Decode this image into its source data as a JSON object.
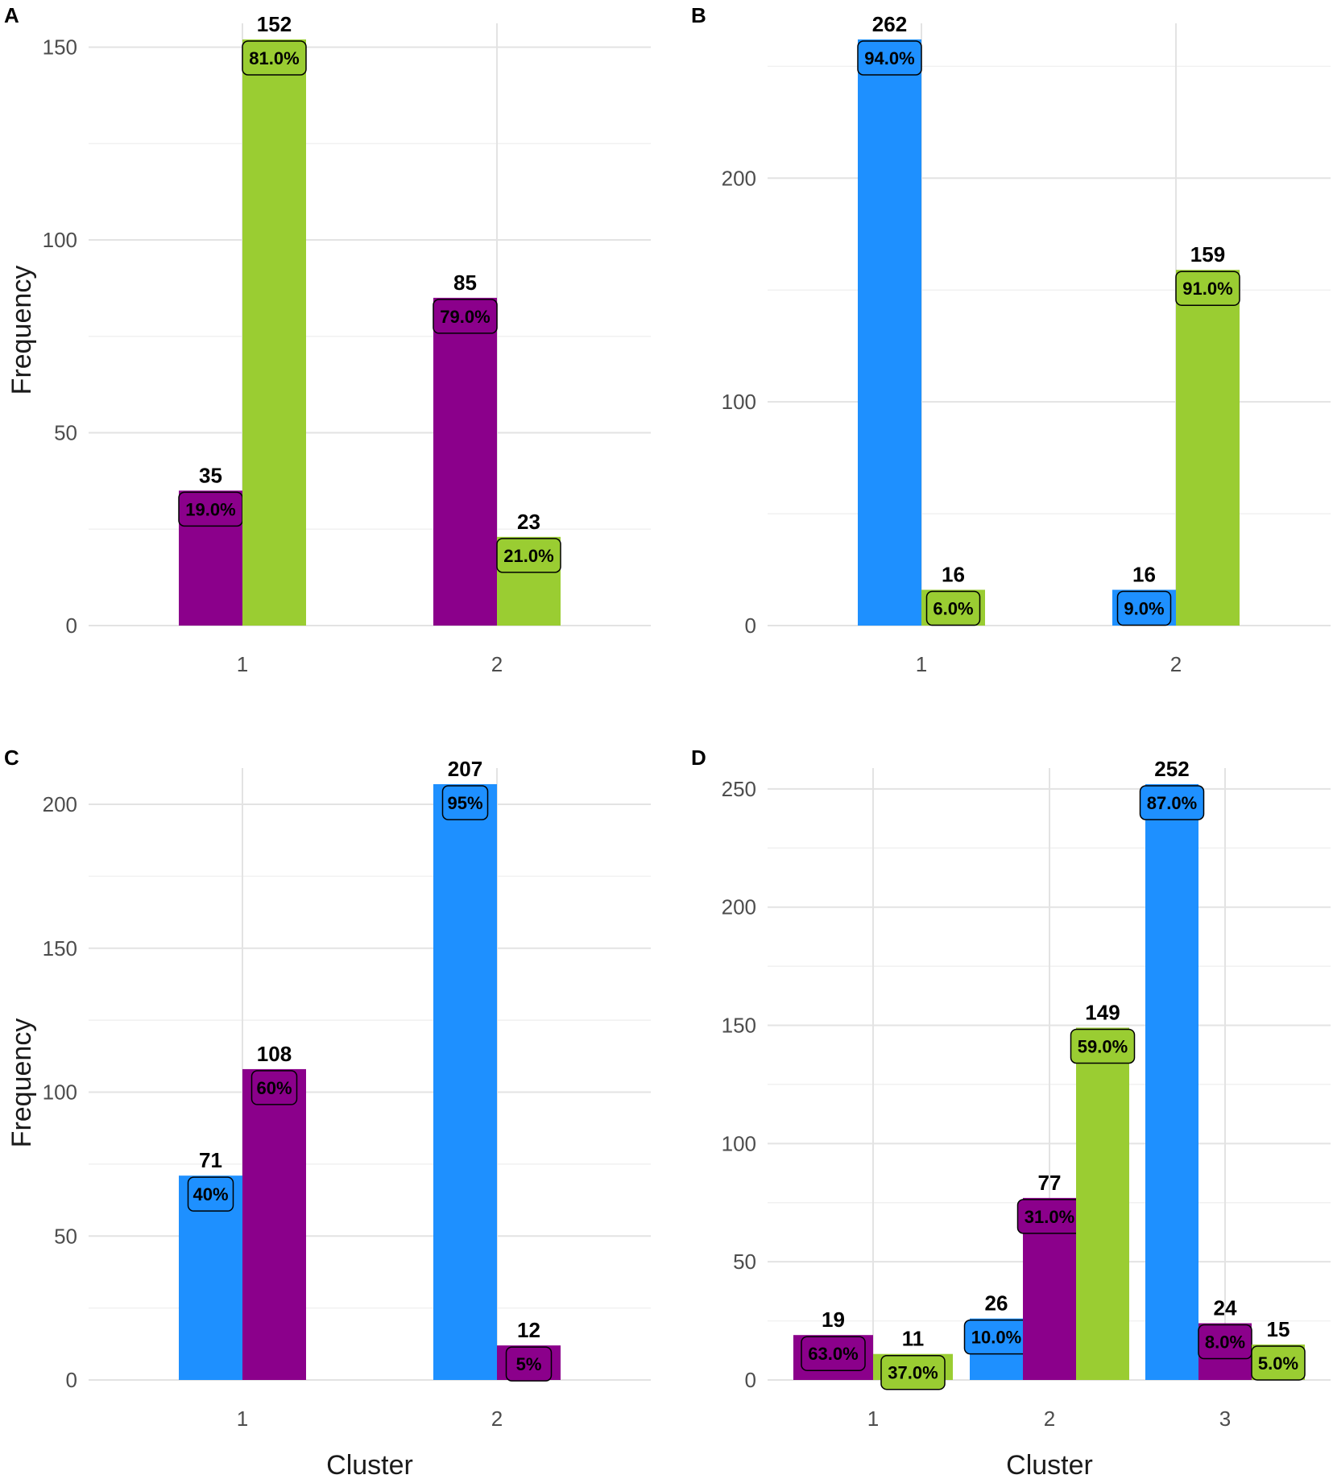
{
  "colors": {
    "blue": "#1E90FF",
    "purple": "#8B008B",
    "green": "#9ACD32",
    "grid_major": "#e3e3e3",
    "grid_minor": "#f1f1f1",
    "label_box_border": "#000000"
  },
  "chart_data": [
    {
      "panel": "A",
      "type": "bar",
      "layout": "grouped",
      "xlabel": "",
      "ylabel": "Frequency",
      "ylim": [
        0,
        152
      ],
      "yticks": [
        0,
        50,
        100,
        150
      ],
      "categories": [
        "1",
        "2"
      ],
      "bars": [
        {
          "category": "1",
          "slot": 0,
          "slots": 2,
          "color": "purple",
          "value": 35,
          "value_label": "35",
          "pct": "19.0%"
        },
        {
          "category": "1",
          "slot": 1,
          "slots": 2,
          "color": "green",
          "value": 152,
          "value_label": "152",
          "pct": "81.0%"
        },
        {
          "category": "2",
          "slot": 0,
          "slots": 2,
          "color": "purple",
          "value": 85,
          "value_label": "85",
          "pct": "79.0%"
        },
        {
          "category": "2",
          "slot": 1,
          "slots": 2,
          "color": "green",
          "value": 23,
          "value_label": "23",
          "pct": "21.0%"
        }
      ]
    },
    {
      "panel": "B",
      "type": "bar",
      "layout": "grouped",
      "xlabel": "",
      "ylabel": "",
      "ylim": [
        0,
        262
      ],
      "yticks": [
        0,
        100,
        200
      ],
      "categories": [
        "1",
        "2"
      ],
      "bars": [
        {
          "category": "1",
          "slot": 0,
          "slots": 2,
          "color": "blue",
          "value": 262,
          "value_label": "262",
          "pct": "94.0%"
        },
        {
          "category": "1",
          "slot": 1,
          "slots": 2,
          "color": "green",
          "value": 16,
          "value_label": "16",
          "pct": "6.0%"
        },
        {
          "category": "2",
          "slot": 0,
          "slots": 2,
          "color": "blue",
          "value": 16,
          "value_label": "16",
          "pct": "9.0%"
        },
        {
          "category": "2",
          "slot": 1,
          "slots": 2,
          "color": "green",
          "value": 159,
          "value_label": "159",
          "pct": "91.0%"
        }
      ]
    },
    {
      "panel": "C",
      "type": "bar",
      "layout": "grouped",
      "xlabel": "Cluster",
      "ylabel": "Frequency",
      "ylim": [
        0,
        207
      ],
      "yticks": [
        0,
        50,
        100,
        150,
        200
      ],
      "categories": [
        "1",
        "2"
      ],
      "bars": [
        {
          "category": "1",
          "slot": 0,
          "slots": 2,
          "color": "blue",
          "value": 71,
          "value_label": "71",
          "pct": "40%"
        },
        {
          "category": "1",
          "slot": 1,
          "slots": 2,
          "color": "purple",
          "value": 108,
          "value_label": "108",
          "pct": "60%"
        },
        {
          "category": "2",
          "slot": 0,
          "slots": 2,
          "color": "blue",
          "value": 207,
          "value_label": "207",
          "pct": "95%"
        },
        {
          "category": "2",
          "slot": 1,
          "slots": 2,
          "color": "purple",
          "value": 12,
          "value_label": "12",
          "pct": "5%"
        }
      ]
    },
    {
      "panel": "D",
      "type": "bar",
      "layout": "dodged",
      "xlabel": "Cluster",
      "ylabel": "",
      "ylim": [
        0,
        252
      ],
      "yticks": [
        0,
        50,
        100,
        150,
        200,
        250
      ],
      "categories": [
        "1",
        "2",
        "3"
      ],
      "bars": [
        {
          "category": "1",
          "slot": 0,
          "slots": 2,
          "color": "purple",
          "value": 19,
          "value_label": "19",
          "pct": "63.0%"
        },
        {
          "category": "1",
          "slot": 1,
          "slots": 2,
          "color": "green",
          "value": 11,
          "value_label": "11",
          "pct": "37.0%"
        },
        {
          "category": "2",
          "slot": 0,
          "slots": 3,
          "color": "blue",
          "value": 26,
          "value_label": "26",
          "pct": "10.0%"
        },
        {
          "category": "2",
          "slot": 1,
          "slots": 3,
          "color": "purple",
          "value": 77,
          "value_label": "77",
          "pct": "31.0%"
        },
        {
          "category": "2",
          "slot": 2,
          "slots": 3,
          "color": "green",
          "value": 149,
          "value_label": "149",
          "pct": "59.0%"
        },
        {
          "category": "3",
          "slot": 0,
          "slots": 3,
          "color": "blue",
          "value": 252,
          "value_label": "252",
          "pct": "87.0%"
        },
        {
          "category": "3",
          "slot": 1,
          "slots": 3,
          "color": "purple",
          "value": 24,
          "value_label": "24",
          "pct": "8.0%"
        },
        {
          "category": "3",
          "slot": 2,
          "slots": 3,
          "color": "green",
          "value": 15,
          "value_label": "15",
          "pct": "5.0%"
        }
      ]
    }
  ]
}
